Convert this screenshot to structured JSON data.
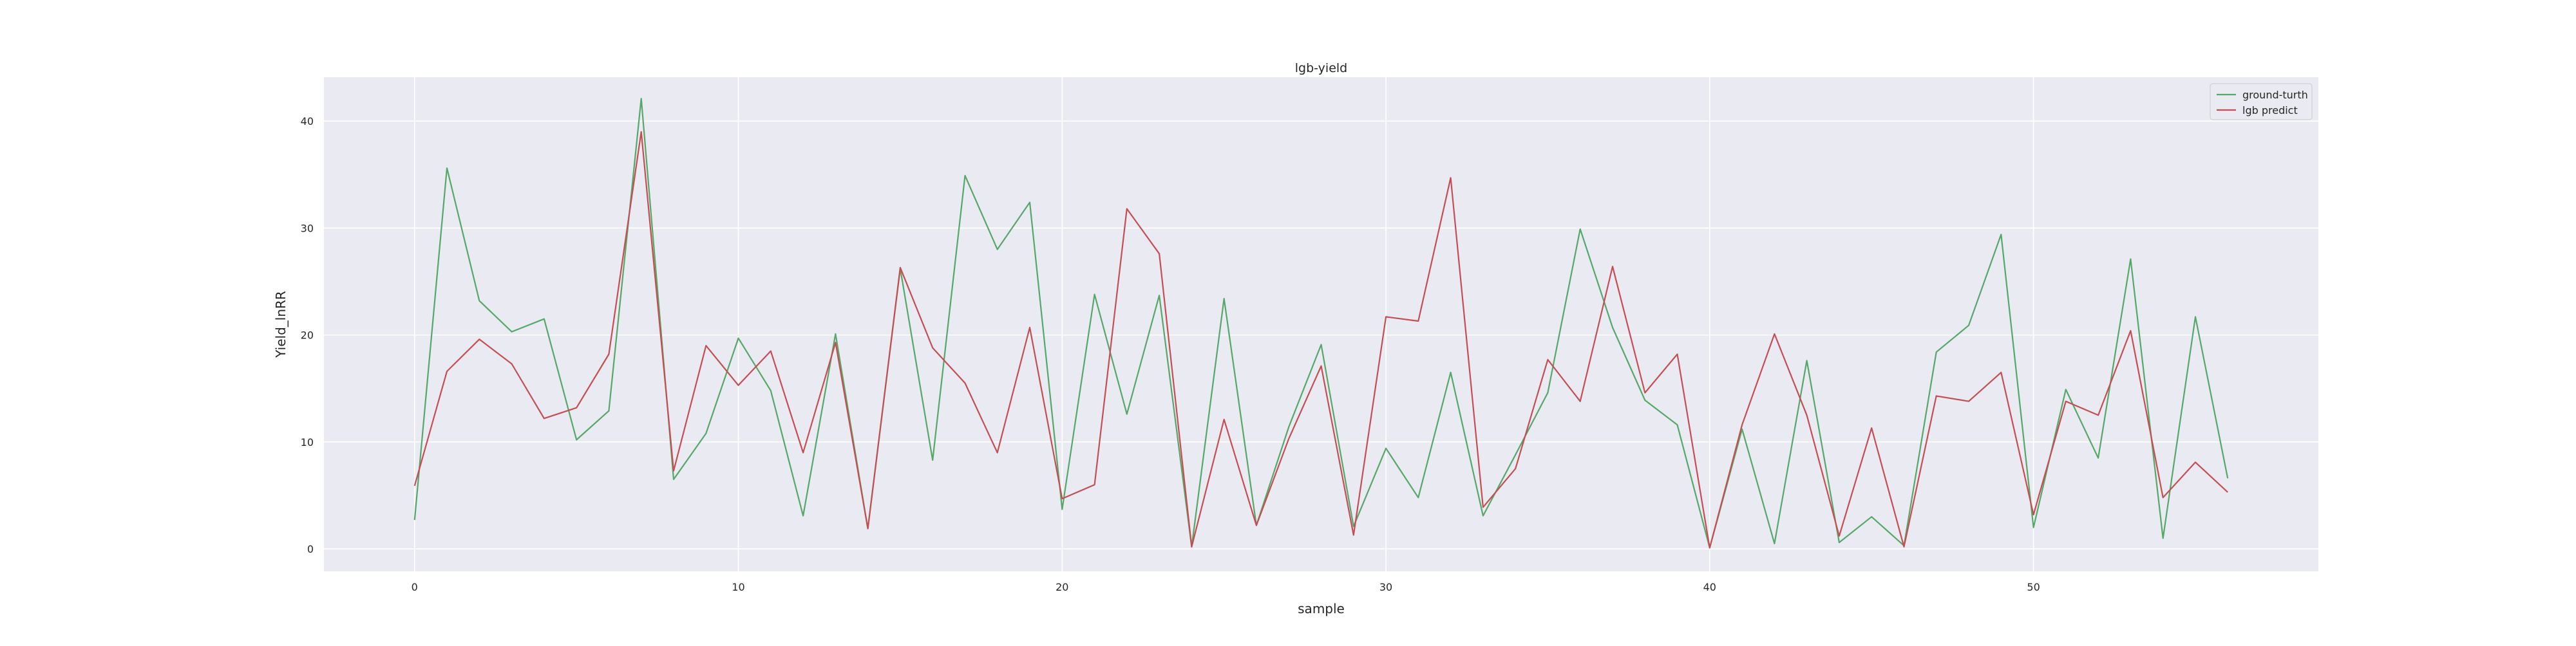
{
  "chart_data": {
    "type": "line",
    "title": "lgb-yield",
    "xlabel": "sample",
    "ylabel": "Yield_lnRR",
    "xlim": [
      -2.8,
      58.8
    ],
    "ylim": [
      -2.1,
      44.1
    ],
    "x_ticks": [
      0,
      10,
      20,
      30,
      40,
      50
    ],
    "y_ticks": [
      0,
      10,
      20,
      30,
      40
    ],
    "grid": true,
    "legend_position": "top-right",
    "background_color": "#eaeaf2",
    "grid_color": "#ffffff",
    "x": [
      0,
      1,
      2,
      3,
      4,
      5,
      6,
      7,
      8,
      9,
      10,
      11,
      12,
      13,
      14,
      15,
      16,
      17,
      18,
      19,
      20,
      21,
      22,
      23,
      24,
      25,
      26,
      27,
      28,
      29,
      30,
      31,
      32,
      33,
      34,
      35,
      36,
      37,
      38,
      39,
      40,
      41,
      42,
      43,
      44,
      45,
      46,
      47,
      48,
      49,
      50,
      51,
      52,
      53,
      54,
      55,
      56
    ],
    "series": [
      {
        "name": "ground-turth",
        "color": "#55a868",
        "values": [
          2.7,
          35.6,
          23.2,
          20.3,
          21.5,
          10.2,
          12.9,
          42.1,
          6.5,
          10.8,
          19.7,
          14.8,
          3.1,
          20.1,
          1.9,
          26.2,
          8.3,
          34.9,
          28.0,
          32.4,
          3.7,
          23.8,
          12.6,
          23.7,
          0.2,
          23.4,
          2.2,
          11.4,
          19.1,
          2.1,
          9.4,
          4.8,
          16.5,
          3.1,
          8.8,
          14.6,
          29.9,
          20.7,
          13.9,
          11.6,
          0.1,
          11.2,
          0.5,
          17.6,
          0.6,
          3.0,
          0.3,
          18.4,
          20.9,
          29.4,
          2.0,
          14.9,
          8.5,
          27.1,
          1.0,
          21.7,
          6.6
        ]
      },
      {
        "name": "lgb predict",
        "color": "#c44e52",
        "values": [
          5.9,
          16.6,
          19.6,
          17.3,
          12.2,
          13.2,
          18.2,
          39.0,
          7.3,
          19.0,
          15.3,
          18.5,
          9.0,
          19.3,
          1.9,
          26.3,
          18.8,
          15.5,
          9.0,
          20.7,
          4.7,
          6.0,
          31.8,
          27.6,
          0.2,
          12.1,
          2.2,
          10.3,
          17.1,
          1.3,
          21.7,
          21.3,
          34.7,
          3.9,
          7.5,
          17.7,
          13.8,
          26.4,
          14.6,
          18.2,
          0.1,
          11.6,
          20.1,
          12.5,
          1.2,
          11.3,
          0.2,
          14.3,
          13.8,
          16.5,
          3.2,
          13.8,
          12.5,
          20.4,
          4.8,
          8.1,
          5.3
        ]
      }
    ]
  }
}
